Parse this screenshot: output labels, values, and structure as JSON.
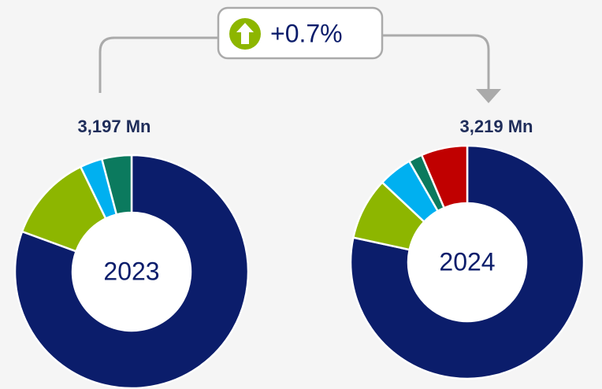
{
  "change": {
    "label": "+0.7%"
  },
  "chart_data": [
    {
      "type": "pie",
      "title": "3,197 Mn",
      "center_label": "2023",
      "values": [
        80.6,
        12.2,
        3.1,
        4.1
      ],
      "colors": [
        "#0b1d6b",
        "#8db600",
        "#00b0f0",
        "#0b7a5e"
      ]
    },
    {
      "type": "pie",
      "title": "3,219 Mn",
      "center_label": "2024",
      "values": [
        78.4,
        8.6,
        4.7,
        1.9,
        6.4
      ],
      "colors": [
        "#0b1d6b",
        "#8db600",
        "#00b0f0",
        "#0b7a5e",
        "#c00000"
      ]
    }
  ]
}
